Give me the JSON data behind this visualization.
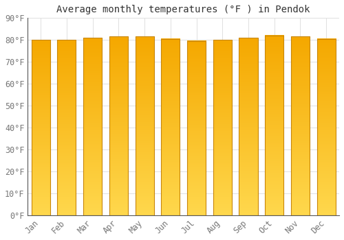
{
  "title": "Average monthly temperatures (°F ) in Pendok",
  "months": [
    "Jan",
    "Feb",
    "Mar",
    "Apr",
    "May",
    "Jun",
    "Jul",
    "Aug",
    "Sep",
    "Oct",
    "Nov",
    "Dec"
  ],
  "values": [
    80,
    80,
    81,
    81.5,
    81.5,
    80.5,
    79.5,
    80,
    81,
    82,
    81.5,
    80.5
  ],
  "bar_color_top": "#F5A800",
  "bar_color_bottom": "#FFD84D",
  "bar_edge_color": "#C8860A",
  "background_color": "#FFFFFF",
  "grid_color": "#E0E0E0",
  "text_color": "#777777",
  "ylim": [
    0,
    90
  ],
  "ytick_step": 10,
  "title_fontsize": 10,
  "tick_fontsize": 8.5
}
